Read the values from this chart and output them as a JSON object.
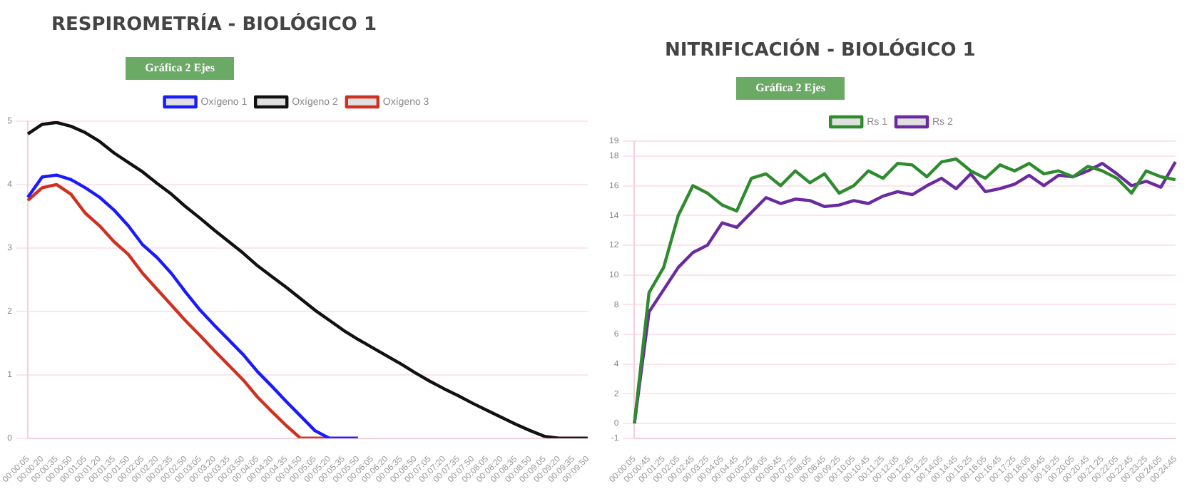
{
  "chart_data": [
    {
      "type": "line",
      "title": "RESPIROMETRÍA - BIOLÓGICO 1",
      "annotations": [
        "Gráfica 2 Ejes"
      ],
      "categories": [
        "00:00:05",
        "00:00:20",
        "00:00:35",
        "00:00:50",
        "00:01:05",
        "00:01:20",
        "00:01:35",
        "00:01:50",
        "00:02:05",
        "00:02:20",
        "00:02:35",
        "00:02:50",
        "00:03:05",
        "00:03:20",
        "00:03:35",
        "00:03:50",
        "00:04:05",
        "00:04:20",
        "00:04:35",
        "00:04:50",
        "00:05:05",
        "00:05:20",
        "00:05:35",
        "00:05:50",
        "00:06:05",
        "00:06:20",
        "00:06:35",
        "00:06:50",
        "00:07:05",
        "00:07:20",
        "00:07:35",
        "00:07:50",
        "00:08:05",
        "00:08:20",
        "00:08:35",
        "00:08:50",
        "00:09:05",
        "00:09:20",
        "00:09:35",
        "00:09:50"
      ],
      "series": [
        {
          "name": "Oxígeno 1",
          "color": "#1a1aff",
          "values": [
            3.8,
            4.12,
            4.15,
            4.08,
            3.95,
            3.8,
            3.6,
            3.35,
            3.05,
            2.85,
            2.6,
            2.3,
            2.02,
            1.78,
            1.55,
            1.32,
            1.05,
            0.82,
            0.58,
            0.35,
            0.12,
            0,
            0,
            0,
            null,
            null,
            null,
            null,
            null,
            null,
            null,
            null,
            null,
            null,
            null,
            null,
            null,
            null,
            null,
            null
          ]
        },
        {
          "name": "Oxígeno 2",
          "color": "#111111",
          "values": [
            4.8,
            4.95,
            4.98,
            4.92,
            4.82,
            4.68,
            4.5,
            4.35,
            4.2,
            4.02,
            3.85,
            3.65,
            3.47,
            3.28,
            3.1,
            2.92,
            2.72,
            2.55,
            2.38,
            2.2,
            2.02,
            1.86,
            1.7,
            1.56,
            1.43,
            1.3,
            1.17,
            1.03,
            0.9,
            0.78,
            0.67,
            0.55,
            0.44,
            0.33,
            0.22,
            0.12,
            0.03,
            0,
            0,
            0
          ]
        },
        {
          "name": "Oxígeno 3",
          "color": "#d03020",
          "values": [
            3.75,
            3.95,
            4.0,
            3.85,
            3.55,
            3.35,
            3.1,
            2.9,
            2.6,
            2.35,
            2.1,
            1.85,
            1.62,
            1.38,
            1.15,
            0.92,
            0.65,
            0.42,
            0.2,
            0,
            0,
            0,
            null,
            null,
            null,
            null,
            null,
            null,
            null,
            null,
            null,
            null,
            null,
            null,
            null,
            null,
            null,
            null,
            null,
            null
          ]
        }
      ],
      "ylim": [
        0,
        5
      ],
      "yticks": [
        0,
        1,
        2,
        3,
        4,
        5
      ],
      "grid": "y",
      "legend": "top"
    },
    {
      "type": "line",
      "title": "NITRIFICACIÓN - BIOLÓGICO 1",
      "annotations": [
        "Gráfica 2 Ejes"
      ],
      "categories": [
        "00:00:05",
        "00:00:45",
        "00:01:25",
        "00:02:05",
        "00:02:45",
        "00:03:25",
        "00:04:05",
        "00:04:45",
        "00:05:25",
        "00:06:05",
        "00:06:45",
        "00:07:25",
        "00:08:05",
        "00:08:45",
        "00:09:25",
        "00:10:05",
        "00:10:45",
        "00:11:25",
        "00:12:05",
        "00:12:45",
        "00:13:25",
        "00:14:05",
        "00:14:45",
        "00:15:25",
        "00:16:05",
        "00:16:45",
        "00:17:25",
        "00:18:05",
        "00:18:45",
        "00:19:25",
        "00:20:05",
        "00:20:45",
        "00:21:25",
        "00:22:05",
        "00:22:45",
        "00:23:25",
        "00:24:05",
        "00:24:45"
      ],
      "series": [
        {
          "name": "Rs 1",
          "color": "#2e8b2e",
          "values": [
            0,
            8.8,
            10.5,
            14,
            16,
            15.5,
            14.7,
            14.3,
            16.5,
            16.8,
            16,
            17,
            16.2,
            16.8,
            15.5,
            16,
            17,
            16.5,
            17.5,
            17.4,
            16.6,
            17.6,
            17.8,
            17,
            16.5,
            17.4,
            17,
            17.5,
            16.8,
            17,
            16.6,
            17.3,
            17,
            16.5,
            15.5,
            17,
            16.6,
            16.4
          ]
        },
        {
          "name": "Rs 2",
          "color": "#6a2aa0",
          "values": [
            0,
            7.5,
            9,
            10.5,
            11.5,
            12,
            13.5,
            13.2,
            14.2,
            15.2,
            14.8,
            15.1,
            15,
            14.6,
            14.7,
            15,
            14.8,
            15.3,
            15.6,
            15.4,
            16,
            16.5,
            15.8,
            16.8,
            15.6,
            15.8,
            16.1,
            16.7,
            16,
            16.7,
            16.6,
            17,
            17.5,
            16.8,
            16,
            16.3,
            15.9,
            17.6
          ]
        }
      ],
      "ylim": [
        -1,
        19
      ],
      "yticks": [
        -1,
        0,
        2,
        4,
        6,
        8,
        10,
        12,
        14,
        16,
        18,
        19
      ],
      "grid": "y",
      "legend": "top"
    }
  ]
}
